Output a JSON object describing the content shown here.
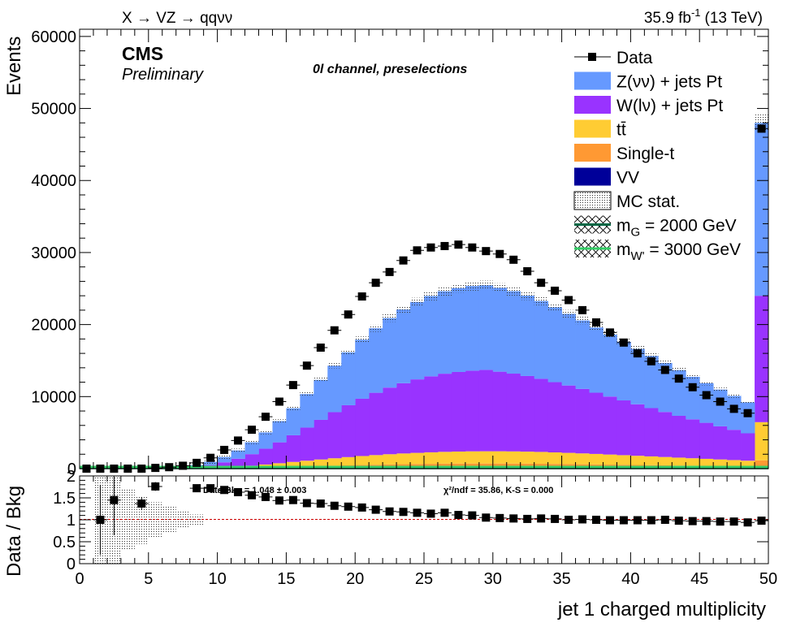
{
  "header": {
    "process": "X → VZ → qqνν",
    "lumi": "35.9 fb",
    "lumi_exp": "-1",
    "energy": "(13 TeV)",
    "cms": "CMS",
    "preliminary": "Preliminary",
    "channel": "0l channel, preselections"
  },
  "legend": [
    {
      "label": "Data",
      "kind": "data"
    },
    {
      "label": "Z(νν) + jets Pt",
      "kind": "fill",
      "color": "#6699ff"
    },
    {
      "label": "W(lν) + jets Pt",
      "kind": "fill",
      "color": "#9933ff"
    },
    {
      "label": "tt̄",
      "kind": "fill",
      "color": "#ffcc33"
    },
    {
      "label": "Single-t",
      "kind": "fill",
      "color": "#ff9933"
    },
    {
      "label": "VV",
      "kind": "fill",
      "color": "#000099"
    },
    {
      "label": "MC stat.",
      "kind": "hatch"
    },
    {
      "label": "m",
      "sub": "G",
      "rest": " = 2000 GeV",
      "kind": "signal",
      "color": "#006644"
    },
    {
      "label": "m",
      "sub": "W'",
      "rest": " = 3000 GeV",
      "kind": "signal",
      "color": "#33cc66"
    }
  ],
  "ratio_stats": {
    "left": "Data/Bkg = 1.048 ± 0.003",
    "right": "χ²/ndf = 35.86,   K-S = 0.000"
  },
  "chart_data": [
    {
      "type": "bar",
      "stacked": true,
      "ylabel": "Events",
      "ylim": [
        0,
        61000
      ],
      "yticks": [
        0,
        10000,
        20000,
        30000,
        40000,
        50000,
        60000
      ],
      "bin_edges": [
        0,
        1,
        2,
        3,
        4,
        5,
        6,
        7,
        8,
        9,
        10,
        11,
        12,
        13,
        14,
        15,
        16,
        17,
        18,
        19,
        20,
        21,
        22,
        23,
        24,
        25,
        26,
        27,
        28,
        29,
        30,
        31,
        32,
        33,
        34,
        35,
        36,
        37,
        38,
        39,
        40,
        41,
        42,
        43,
        44,
        45,
        46,
        47,
        48,
        49,
        50
      ],
      "series": [
        {
          "name": "VV",
          "color": "#000099",
          "values": [
            0,
            0,
            0,
            0,
            0,
            0,
            0,
            0,
            0,
            5,
            10,
            15,
            20,
            30,
            40,
            50,
            60,
            70,
            80,
            90,
            100,
            110,
            120,
            125,
            130,
            135,
            140,
            140,
            140,
            140,
            140,
            140,
            140,
            140,
            135,
            130,
            125,
            120,
            115,
            110,
            105,
            100,
            95,
            90,
            85,
            80,
            75,
            70,
            65,
            250
          ]
        },
        {
          "name": "Single-t",
          "color": "#ff9933",
          "values": [
            0,
            0,
            0,
            0,
            0,
            0,
            0,
            0,
            10,
            20,
            40,
            60,
            90,
            120,
            160,
            200,
            240,
            280,
            320,
            360,
            400,
            430,
            460,
            490,
            510,
            530,
            550,
            560,
            570,
            570,
            570,
            560,
            550,
            540,
            520,
            500,
            480,
            460,
            440,
            420,
            400,
            380,
            360,
            340,
            320,
            300,
            280,
            260,
            240,
            900
          ]
        },
        {
          "name": "tt̄",
          "color": "#ffcc33",
          "values": [
            0,
            0,
            0,
            0,
            0,
            0,
            0,
            10,
            20,
            60,
            120,
            200,
            300,
            420,
            550,
            680,
            800,
            920,
            1040,
            1150,
            1250,
            1340,
            1420,
            1490,
            1550,
            1600,
            1640,
            1670,
            1690,
            1700,
            1700,
            1690,
            1670,
            1640,
            1600,
            1560,
            1510,
            1460,
            1400,
            1340,
            1280,
            1220,
            1160,
            1100,
            1040,
            980,
            920,
            860,
            800,
            5300
          ]
        },
        {
          "name": "W(lν) + jets Pt",
          "color": "#9933ff",
          "values": [
            0,
            0,
            0,
            0,
            0,
            10,
            40,
            100,
            220,
            400,
            700,
            1100,
            1600,
            2200,
            2900,
            3700,
            4600,
            5500,
            6400,
            7200,
            7950,
            8650,
            9250,
            9750,
            10200,
            10550,
            10850,
            11050,
            11200,
            11300,
            11050,
            10800,
            10500,
            10150,
            9750,
            9350,
            8950,
            8500,
            8050,
            7600,
            7150,
            6700,
            6250,
            5800,
            5400,
            5000,
            4600,
            4200,
            3800,
            17550
          ]
        },
        {
          "name": "Z(νν) + jets Pt",
          "color": "#6699ff",
          "values": [
            0,
            0,
            0,
            0,
            0,
            10,
            50,
            120,
            250,
            450,
            750,
            1150,
            1650,
            2250,
            2950,
            3750,
            4650,
            5550,
            6450,
            7350,
            8200,
            8950,
            9650,
            10250,
            10750,
            11150,
            11450,
            11650,
            11750,
            11750,
            11650,
            11450,
            11150,
            10800,
            10400,
            9950,
            9500,
            9050,
            8600,
            8150,
            7700,
            7250,
            6800,
            6350,
            5900,
            5500,
            5100,
            4700,
            4300,
            24000
          ]
        }
      ],
      "mc_total_band": [
        {
          "x": 28.5,
          "low": 29800,
          "high": 30600
        },
        {
          "x": 49.5,
          "low": 47800,
          "high": 48700
        }
      ],
      "data": {
        "name": "Data",
        "x": [
          0.5,
          1.5,
          2.5,
          3.5,
          4.5,
          5.5,
          6.5,
          7.5,
          8.5,
          9.5,
          10.5,
          11.5,
          12.5,
          13.5,
          14.5,
          15.5,
          16.5,
          17.5,
          18.5,
          19.5,
          20.5,
          21.5,
          22.5,
          23.5,
          24.5,
          25.5,
          26.5,
          27.5,
          28.5,
          29.5,
          30.5,
          31.5,
          32.5,
          33.5,
          34.5,
          35.5,
          36.5,
          37.5,
          38.5,
          39.5,
          40.5,
          41.5,
          42.5,
          43.5,
          44.5,
          45.5,
          46.5,
          47.5,
          48.5,
          49.5
        ],
        "y": [
          0,
          0,
          0,
          0,
          0,
          100,
          200,
          400,
          800,
          1500,
          2600,
          3900,
          5400,
          7200,
          9300,
          11600,
          14300,
          16800,
          19200,
          21400,
          23900,
          25800,
          27300,
          28900,
          30300,
          30700,
          30900,
          31100,
          30700,
          30200,
          29800,
          29000,
          27400,
          25800,
          24700,
          23400,
          22000,
          20300,
          18900,
          17500,
          16000,
          14900,
          13700,
          12500,
          11300,
          10200,
          9300,
          8300,
          7700,
          47200
        ]
      }
    },
    {
      "type": "scatter",
      "ylabel": "Data / Bkg",
      "xlabel": "jet 1 charged multiplicity",
      "xlim": [
        0,
        50
      ],
      "ylim": [
        0,
        2
      ],
      "yticks": [
        0,
        0.5,
        1,
        1.5,
        2
      ],
      "ytick_labels": [
        "0",
        "0.5",
        "1",
        "1.5",
        "2"
      ],
      "xticks": [
        0,
        5,
        10,
        15,
        20,
        25,
        30,
        35,
        40,
        45,
        50
      ],
      "reference_line": 1,
      "points": {
        "x": [
          1.5,
          2.5,
          4.5,
          5.5,
          8.5,
          9.5,
          10.5,
          11.5,
          12.5,
          13.5,
          14.5,
          15.5,
          16.5,
          17.5,
          18.5,
          19.5,
          20.5,
          21.5,
          22.5,
          23.5,
          24.5,
          25.5,
          26.5,
          27.5,
          28.5,
          29.5,
          30.5,
          31.5,
          32.5,
          33.5,
          34.5,
          35.5,
          36.5,
          37.5,
          38.5,
          39.5,
          40.5,
          41.5,
          42.5,
          43.5,
          44.5,
          45.5,
          46.5,
          47.5,
          48.5,
          49.5
        ],
        "y": [
          1.0,
          1.45,
          1.37,
          1.76,
          1.72,
          1.72,
          1.68,
          1.63,
          1.56,
          1.52,
          1.44,
          1.45,
          1.38,
          1.37,
          1.32,
          1.3,
          1.28,
          1.23,
          1.19,
          1.18,
          1.16,
          1.14,
          1.16,
          1.11,
          1.1,
          1.05,
          1.04,
          1.03,
          1.02,
          1.03,
          1.02,
          1.0,
          1.01,
          1.0,
          0.99,
          0.99,
          0.99,
          0.99,
          1.0,
          0.98,
          0.97,
          0.97,
          0.96,
          0.96,
          0.94,
          0.98
        ],
        "err": [
          0.8,
          0.8,
          0.15,
          0.1,
          0.02,
          0.02,
          0.02,
          0.02,
          0.02,
          0.02,
          0.02,
          0.02,
          0.02,
          0.02,
          0.02,
          0.02,
          0.02,
          0.02,
          0.02,
          0.02,
          0.02,
          0.02,
          0.02,
          0.02,
          0.02,
          0.02,
          0.02,
          0.02,
          0.02,
          0.02,
          0.02,
          0.02,
          0.02,
          0.02,
          0.02,
          0.02,
          0.02,
          0.02,
          0.02,
          0.02,
          0.02,
          0.02,
          0.02,
          0.02,
          0.02,
          0.02
        ]
      },
      "mc_stat_band": [
        {
          "x": 1.5,
          "half_width": 1.0
        },
        {
          "x": 2.5,
          "half_width": 1.0
        },
        {
          "x": 3.5,
          "half_width": 0.7
        },
        {
          "x": 4.5,
          "half_width": 0.55
        },
        {
          "x": 5.5,
          "half_width": 0.4
        },
        {
          "x": 6.5,
          "half_width": 0.3
        },
        {
          "x": 7.5,
          "half_width": 0.2
        },
        {
          "x": 8.5,
          "half_width": 0.12
        }
      ]
    }
  ]
}
